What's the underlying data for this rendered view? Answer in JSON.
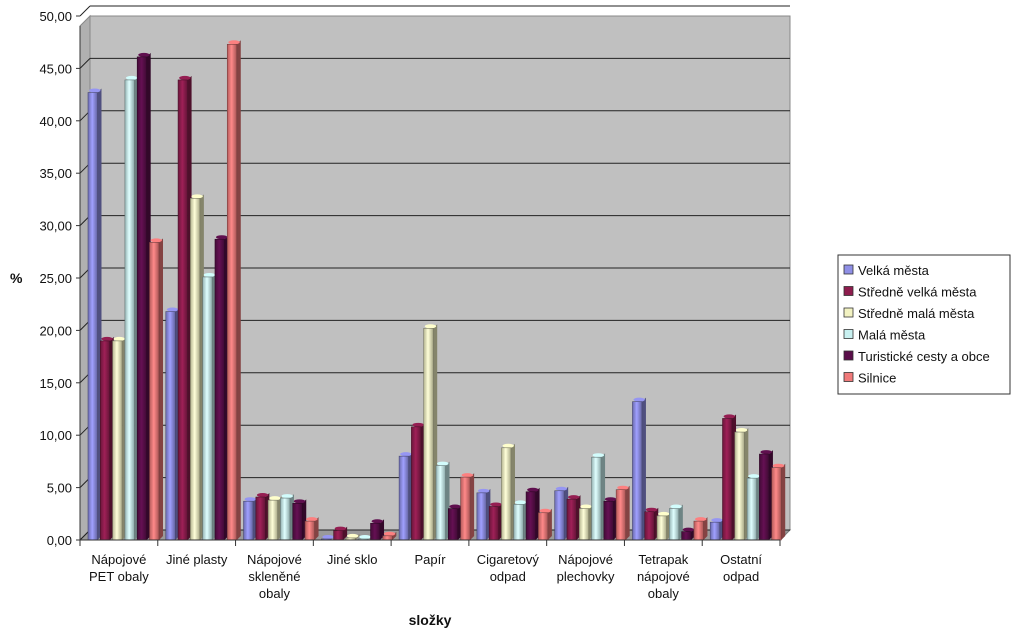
{
  "chart_data": {
    "type": "bar",
    "title": "",
    "xlabel": "složky",
    "ylabel": "%",
    "ylim": [
      0,
      50
    ],
    "yticks": [
      "0,00",
      "5,00",
      "10,00",
      "15,00",
      "20,00",
      "25,00",
      "30,00",
      "35,00",
      "40,00",
      "45,00",
      "50,00"
    ],
    "grid": true,
    "legend_position": "right",
    "categories": [
      [
        "Nápojové",
        "PET obaly"
      ],
      [
        "Jiné plasty"
      ],
      [
        "Nápojové",
        "skleněné",
        "obaly"
      ],
      [
        "Jiné sklo"
      ],
      [
        "Papír"
      ],
      [
        "Cigaretový",
        "odpad"
      ],
      [
        "Nápojové",
        "plechovky"
      ],
      [
        "Tetrapak",
        "nápojové",
        "obaly"
      ],
      [
        "Ostatní",
        "odpad"
      ]
    ],
    "series": [
      {
        "name": "Velká města",
        "color": "#8f8fe6",
        "values": [
          42.7,
          21.8,
          3.7,
          0.1,
          8.0,
          4.5,
          4.7,
          13.2,
          1.7
        ]
      },
      {
        "name": "Středně velká města",
        "color": "#8e1d4e",
        "values": [
          19.0,
          43.9,
          4.1,
          0.9,
          10.8,
          3.2,
          3.9,
          2.7,
          11.6
        ]
      },
      {
        "name": "Středně malá města",
        "color": "#f2f2c2",
        "values": [
          19.0,
          32.6,
          3.8,
          0.2,
          20.2,
          8.8,
          3.0,
          2.3,
          10.3
        ]
      },
      {
        "name": "Malá města",
        "color": "#c8f0f0",
        "values": [
          43.9,
          25.1,
          4.0,
          0.1,
          7.1,
          3.4,
          7.9,
          3.0,
          5.9
        ]
      },
      {
        "name": "Turistické cesty a obce",
        "color": "#5a0e4a",
        "values": [
          46.1,
          28.7,
          3.5,
          1.6,
          3.0,
          4.6,
          3.7,
          0.8,
          8.2
        ]
      },
      {
        "name": "Silnice",
        "color": "#f07a7a",
        "values": [
          28.4,
          47.3,
          1.8,
          0.4,
          6.0,
          2.6,
          4.8,
          1.8,
          6.9
        ]
      }
    ]
  }
}
